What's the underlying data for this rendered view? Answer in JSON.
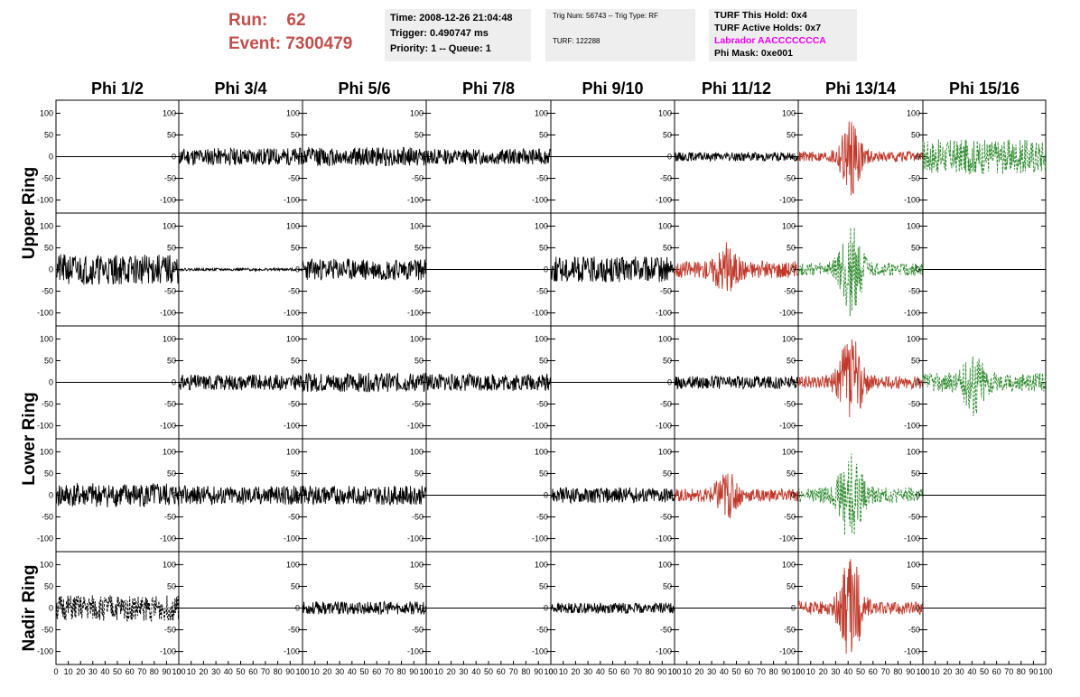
{
  "header": {
    "run_label": "Run:",
    "run_value": "62",
    "event_label": "Event:",
    "event_value": "7300479"
  },
  "info_time": {
    "time": "Time: 2008-12-26 21:04:48",
    "trigger": "Trigger: 0.490747 ms",
    "priority": "Priority: 1 -- Queue: 1"
  },
  "info_trig": {
    "trig": "Trig Num: 56743 -- Trig Type: RF",
    "turf": "TURF: 122288"
  },
  "info_turf": {
    "hold": "TURF This Hold: 0x4",
    "active": "TURF Active Holds: 0x7",
    "labrador": "Labrador AACCCCCCCA",
    "phimask": "Phi Mask: 0xe001"
  },
  "colors": {
    "title_red": "#c0504d",
    "black": "#000000",
    "red": "#c0392b",
    "green": "#2e8b2e",
    "magenta": "#ee00ee"
  },
  "chart_data": {
    "type": "line",
    "title": "",
    "columns": [
      "Phi 1/2",
      "Phi 3/4",
      "Phi 5/6",
      "Phi 7/8",
      "Phi 9/10",
      "Phi 11/12",
      "Phi 13/14",
      "Phi 15/16"
    ],
    "row_labels": [
      {
        "label": "Upper Ring",
        "rows": [
          0,
          1
        ]
      },
      {
        "label": "Lower Ring",
        "rows": [
          2,
          3
        ]
      },
      {
        "label": "Nadir Ring",
        "rows": [
          4
        ]
      }
    ],
    "ylim": [
      -130,
      130
    ],
    "yticks": [
      -100,
      -50,
      0,
      50,
      100
    ],
    "xlim": [
      0,
      100
    ],
    "xticks": [
      0,
      10,
      20,
      30,
      40,
      50,
      60,
      70,
      80,
      90,
      100
    ],
    "grid": [
      [
        {
          "style": "flat"
        },
        {
          "style": "noise",
          "amp": 20,
          "seed": 11,
          "color": "black"
        },
        {
          "style": "noise",
          "amp": 22,
          "seed": 12,
          "color": "black"
        },
        {
          "style": "noise",
          "amp": 18,
          "seed": 13,
          "color": "black"
        },
        {
          "style": "flat"
        },
        {
          "style": "noise",
          "amp": 10,
          "seed": 15,
          "color": "black"
        },
        {
          "style": "pulse",
          "amp": 12,
          "peak": 80,
          "seed": 16,
          "color": "red"
        },
        {
          "style": "noise",
          "amp": 40,
          "seed": 17,
          "color": "green",
          "dash": true
        }
      ],
      [
        {
          "style": "noise",
          "amp": 35,
          "seed": 21,
          "color": "black"
        },
        {
          "style": "noise",
          "amp": 3,
          "seed": 22,
          "color": "black"
        },
        {
          "style": "noise",
          "amp": 25,
          "seed": 23,
          "color": "black"
        },
        {
          "style": "flat"
        },
        {
          "style": "noise",
          "amp": 30,
          "seed": 25,
          "color": "black"
        },
        {
          "style": "pulse",
          "amp": 20,
          "peak": 45,
          "seed": 26,
          "color": "red"
        },
        {
          "style": "pulse",
          "amp": 15,
          "peak": 100,
          "seed": 27,
          "color": "green",
          "dash": true
        },
        {
          "style": "flat"
        }
      ],
      [
        {
          "style": "flat"
        },
        {
          "style": "noise",
          "amp": 18,
          "seed": 31,
          "color": "black"
        },
        {
          "style": "noise",
          "amp": 22,
          "seed": 32,
          "color": "black"
        },
        {
          "style": "noise",
          "amp": 20,
          "seed": 33,
          "color": "black"
        },
        {
          "style": "flat"
        },
        {
          "style": "noise",
          "amp": 15,
          "seed": 35,
          "color": "black"
        },
        {
          "style": "pulse",
          "amp": 15,
          "peak": 110,
          "seed": 36,
          "color": "red"
        },
        {
          "style": "pulse",
          "amp": 22,
          "peak": 60,
          "seed": 37,
          "color": "green",
          "dash": true
        }
      ],
      [
        {
          "style": "noise",
          "amp": 28,
          "seed": 41,
          "color": "black"
        },
        {
          "style": "noise",
          "amp": 22,
          "seed": 42,
          "color": "black"
        },
        {
          "style": "noise",
          "amp": 22,
          "seed": 43,
          "color": "black"
        },
        {
          "style": "flat"
        },
        {
          "style": "noise",
          "amp": 18,
          "seed": 45,
          "color": "black"
        },
        {
          "style": "pulse",
          "amp": 15,
          "peak": 45,
          "seed": 46,
          "color": "red"
        },
        {
          "style": "pulse",
          "amp": 18,
          "peak": 100,
          "seed": 47,
          "color": "green",
          "dash": true
        },
        {
          "style": "flat"
        }
      ],
      [
        {
          "style": "noise",
          "amp": 30,
          "seed": 51,
          "color": "black",
          "dash": true
        },
        {
          "style": "flat"
        },
        {
          "style": "noise",
          "amp": 15,
          "seed": 53,
          "color": "black"
        },
        {
          "style": "flat"
        },
        {
          "style": "noise",
          "amp": 12,
          "seed": 55,
          "color": "black"
        },
        {
          "style": "flat"
        },
        {
          "style": "pulse",
          "amp": 15,
          "peak": 110,
          "seed": 57,
          "color": "red"
        },
        {
          "style": "flat"
        }
      ]
    ]
  }
}
